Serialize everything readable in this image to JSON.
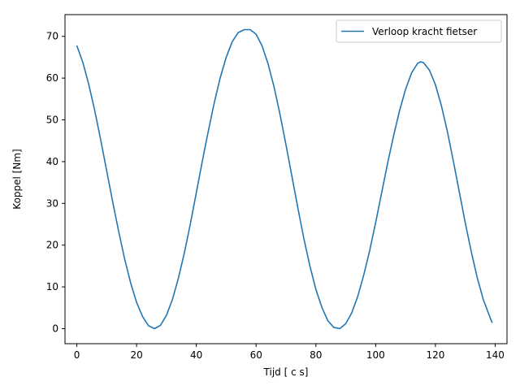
{
  "chart_data": {
    "type": "line",
    "xlabel": "Tijd [ c s]",
    "ylabel": "Koppel [Nm]",
    "xlim": [
      -3.95,
      143.95
    ],
    "ylim": [
      -3.6,
      75.2
    ],
    "xticks": [
      0,
      20,
      40,
      60,
      80,
      100,
      120,
      140
    ],
    "yticks": [
      0,
      10,
      20,
      30,
      40,
      50,
      60,
      70
    ],
    "xtick_labels": [
      "0",
      "20",
      "40",
      "60",
      "80",
      "100",
      "120",
      "140"
    ],
    "ytick_labels": [
      "0",
      "10",
      "20",
      "30",
      "40",
      "50",
      "60",
      "70"
    ],
    "grid": false,
    "legend_position": "top-right",
    "series": [
      {
        "name": "Verloop kracht fietser",
        "color": "#1f77b4",
        "x": [
          0,
          2,
          4,
          6,
          8,
          10,
          12,
          14,
          16,
          18,
          20,
          22,
          24,
          26,
          28,
          30,
          32,
          34,
          36,
          38,
          40,
          42,
          44,
          46,
          48,
          50,
          52,
          54,
          56,
          58,
          60,
          62,
          64,
          66,
          68,
          70,
          72,
          74,
          76,
          78,
          80,
          82,
          84,
          86,
          88,
          90,
          92,
          94,
          96,
          98,
          100,
          102,
          104,
          106,
          108,
          110,
          112,
          114,
          115,
          116,
          118,
          120,
          122,
          124,
          126,
          128,
          130,
          132,
          134,
          136,
          138,
          139
        ],
        "y": [
          67.8,
          63.8,
          58.5,
          52.2,
          45.2,
          37.8,
          30.4,
          23.3,
          16.7,
          11.0,
          6.3,
          2.9,
          0.7,
          0.0,
          0.8,
          3.2,
          7.0,
          12.1,
          18.2,
          25.1,
          32.6,
          40.1,
          47.3,
          54.1,
          60.1,
          65.0,
          68.7,
          70.9,
          71.6,
          71.6,
          70.5,
          67.7,
          63.4,
          57.9,
          51.3,
          44.0,
          36.4,
          28.8,
          21.5,
          15.0,
          9.4,
          5.1,
          1.9,
          0.3,
          0.0,
          1.2,
          3.8,
          7.7,
          12.8,
          18.7,
          25.4,
          32.5,
          39.6,
          46.2,
          52.2,
          57.3,
          61.2,
          63.5,
          63.9,
          63.7,
          61.9,
          58.4,
          53.4,
          47.2,
          40.1,
          32.7,
          25.3,
          18.4,
          12.2,
          7.0,
          3.2,
          1.4
        ]
      }
    ]
  }
}
